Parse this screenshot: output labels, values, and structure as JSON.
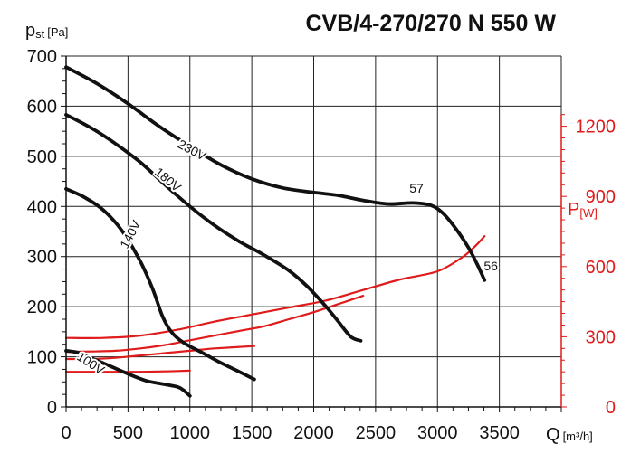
{
  "chart_data": {
    "type": "line",
    "title": "CVB/4-270/270 N 550 W",
    "ylabel": {
      "main": "p",
      "sub1": "st",
      "sub2": "[Pa]"
    },
    "xlabel": {
      "main": "Q",
      "unit": "[m³/h]"
    },
    "y2label": {
      "main": "P",
      "unit": "[W]"
    },
    "xlim": [
      0,
      4000
    ],
    "ylim": [
      0,
      700
    ],
    "y2lim": [
      0,
      1500
    ],
    "x_ticks": [
      0,
      500,
      1000,
      1500,
      2000,
      2500,
      3000,
      3500
    ],
    "x_tick_labels": [
      "0",
      "500",
      "1000",
      "1500",
      "2000",
      "2500",
      "3000",
      "3500"
    ],
    "y_ticks": [
      0,
      100,
      200,
      300,
      400,
      500,
      600,
      700
    ],
    "y_tick_labels": [
      "0",
      "100",
      "200",
      "300",
      "400",
      "500",
      "600",
      "700"
    ],
    "y2_ticks": [
      0,
      300,
      600,
      900,
      1200
    ],
    "y2_tick_labels": [
      "0",
      "300",
      "600",
      "900",
      "1200"
    ],
    "grid": true,
    "pressure_series": [
      {
        "name": "230V",
        "color": "#111111",
        "x": [
          0,
          250,
          500,
          750,
          1000,
          1250,
          1500,
          1750,
          2000,
          2200,
          2400,
          2600,
          2800,
          2950,
          3050,
          3150,
          3250,
          3320,
          3380
        ],
        "y": [
          678,
          645,
          605,
          560,
          520,
          483,
          455,
          437,
          428,
          422,
          412,
          405,
          407,
          402,
          385,
          355,
          318,
          285,
          253
        ]
      },
      {
        "name": "180V",
        "color": "#111111",
        "x": [
          0,
          200,
          400,
          600,
          800,
          1000,
          1200,
          1400,
          1600,
          1800,
          1950,
          2100,
          2200,
          2300,
          2380
        ],
        "y": [
          583,
          557,
          525,
          488,
          443,
          400,
          362,
          330,
          303,
          272,
          240,
          200,
          170,
          140,
          132
        ]
      },
      {
        "name": "140V",
        "color": "#111111",
        "x": [
          0,
          150,
          300,
          450,
          600,
          700,
          780,
          850,
          950,
          1100,
          1250,
          1400,
          1520
        ],
        "y": [
          435,
          418,
          393,
          352,
          290,
          235,
          180,
          150,
          128,
          108,
          88,
          70,
          55
        ]
      },
      {
        "name": "100V",
        "color": "#111111",
        "x": [
          0,
          100,
          200,
          350,
          500,
          650,
          800,
          900,
          950,
          1000
        ],
        "y": [
          112,
          108,
          98,
          82,
          66,
          52,
          45,
          40,
          33,
          22
        ]
      }
    ],
    "power_series": [
      {
        "name": "230V",
        "color": "#e01b1b",
        "x": [
          0,
          300,
          600,
          900,
          1200,
          1500,
          1800,
          2100,
          2400,
          2700,
          3000,
          3200,
          3300,
          3380
        ],
        "y": [
          295,
          295,
          305,
          330,
          365,
          395,
          425,
          455,
          500,
          545,
          580,
          640,
          685,
          730
        ]
      },
      {
        "name": "180V",
        "color": "#e01b1b",
        "x": [
          0,
          200,
          400,
          600,
          800,
          1000,
          1200,
          1400,
          1600,
          1800,
          2000,
          2200,
          2400
        ],
        "y": [
          235,
          237,
          240,
          250,
          265,
          285,
          305,
          325,
          345,
          375,
          405,
          440,
          475
        ]
      },
      {
        "name": "140V",
        "color": "#e01b1b",
        "x": [
          0,
          200,
          400,
          600,
          800,
          1000,
          1200,
          1520
        ],
        "y": [
          205,
          205,
          210,
          220,
          230,
          240,
          250,
          260
        ]
      },
      {
        "name": "100V",
        "color": "#e01b1b",
        "x": [
          0,
          200,
          400,
          600,
          800,
          1000
        ],
        "y": [
          150,
          150,
          150,
          150,
          152,
          155
        ]
      }
    ],
    "annotations": [
      {
        "text": "230V",
        "x": 1000,
        "y": 505,
        "rotate": 28
      },
      {
        "text": "180V",
        "x": 800,
        "y": 447,
        "rotate": 40
      },
      {
        "text": "140V",
        "x": 550,
        "y": 340,
        "rotate": -62
      },
      {
        "text": "100V",
        "x": 180,
        "y": 80,
        "rotate": 33
      },
      {
        "text": "57",
        "x": 2830,
        "y": 428,
        "rotate": 0
      },
      {
        "text": "56",
        "x": 3430,
        "y": 272,
        "rotate": 0
      }
    ]
  }
}
